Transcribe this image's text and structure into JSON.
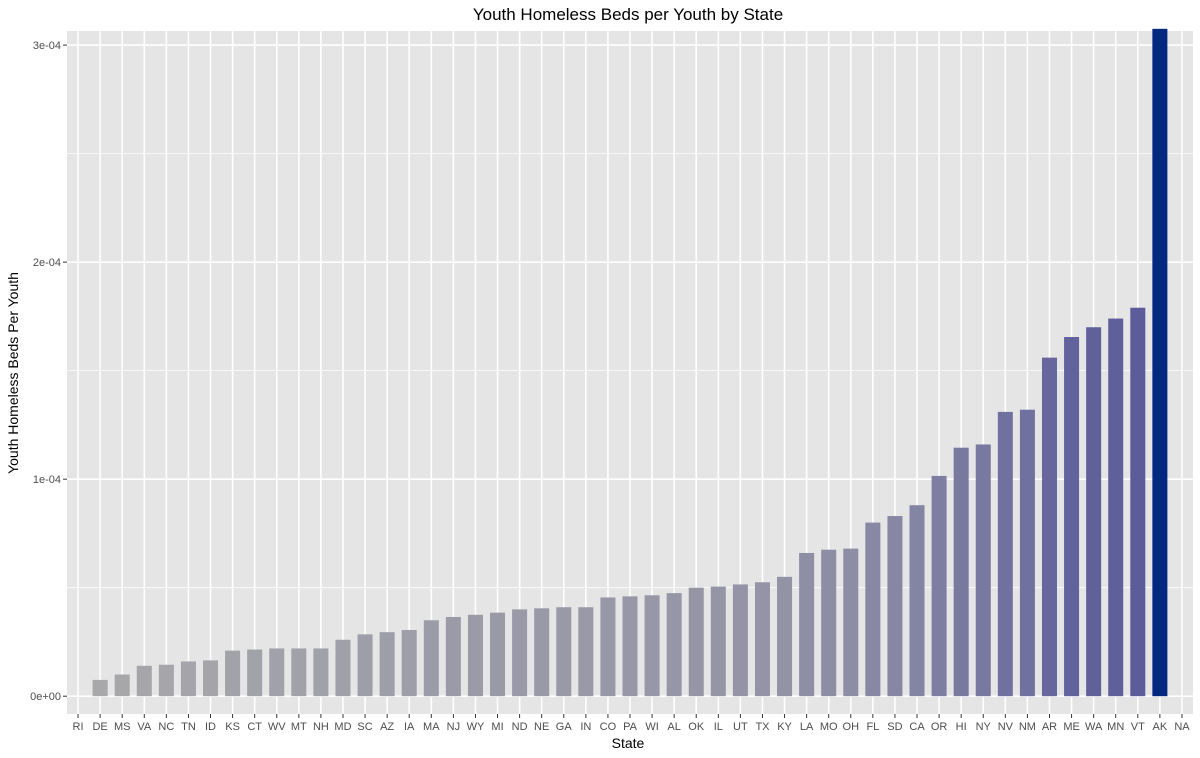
{
  "chart_data": {
    "type": "bar",
    "title": "Youth Homeless Beds per Youth by State",
    "xlabel": "State",
    "ylabel": "Youth Homeless Beds Per Youth",
    "ylim": [
      -8.2e-06,
      0.0003065
    ],
    "y_ticks": [
      0,
      0.0001,
      0.0002,
      0.0003
    ],
    "y_tick_labels": [
      "0e+00",
      "1e-04",
      "2e-04",
      "3e-04"
    ],
    "grid": true,
    "legend": "none",
    "colors": {
      "panel_background": "#e5e5e5",
      "grid_line": "#ffffff",
      "bar_low": "#ababab",
      "bar_mid": "#5a5a9a",
      "bar_high": "#03287f"
    },
    "categories": [
      "RI",
      "DE",
      "MS",
      "VA",
      "NC",
      "TN",
      "ID",
      "KS",
      "CT",
      "WV",
      "MT",
      "NH",
      "MD",
      "SC",
      "AZ",
      "IA",
      "MA",
      "NJ",
      "WY",
      "MI",
      "ND",
      "NE",
      "GA",
      "IN",
      "CO",
      "PA",
      "WI",
      "AL",
      "OK",
      "IL",
      "UT",
      "TX",
      "KY",
      "LA",
      "MO",
      "OH",
      "FL",
      "SD",
      "CA",
      "OR",
      "HI",
      "NY",
      "NV",
      "NM",
      "AR",
      "ME",
      "WA",
      "MN",
      "VT",
      "AK",
      "NA"
    ],
    "values": [
      0,
      7.5e-06,
      1e-05,
      1.4e-05,
      1.45e-05,
      1.6e-05,
      1.65e-05,
      2.1e-05,
      2.15e-05,
      2.2e-05,
      2.2e-05,
      2.2e-05,
      2.6e-05,
      2.85e-05,
      2.95e-05,
      3.05e-05,
      3.5e-05,
      3.65e-05,
      3.75e-05,
      3.85e-05,
      4e-05,
      4.05e-05,
      4.1e-05,
      4.1e-05,
      4.55e-05,
      4.6e-05,
      4.65e-05,
      4.75e-05,
      5e-05,
      5.05e-05,
      5.15e-05,
      5.25e-05,
      5.5e-05,
      6.6e-05,
      6.75e-05,
      6.8e-05,
      8e-05,
      8.3e-05,
      8.8e-05,
      0.0001015,
      0.0001145,
      0.000116,
      0.000131,
      0.000132,
      0.000156,
      0.0001655,
      0.00017,
      0.000174,
      0.000179,
      0.0003075,
      null
    ]
  }
}
